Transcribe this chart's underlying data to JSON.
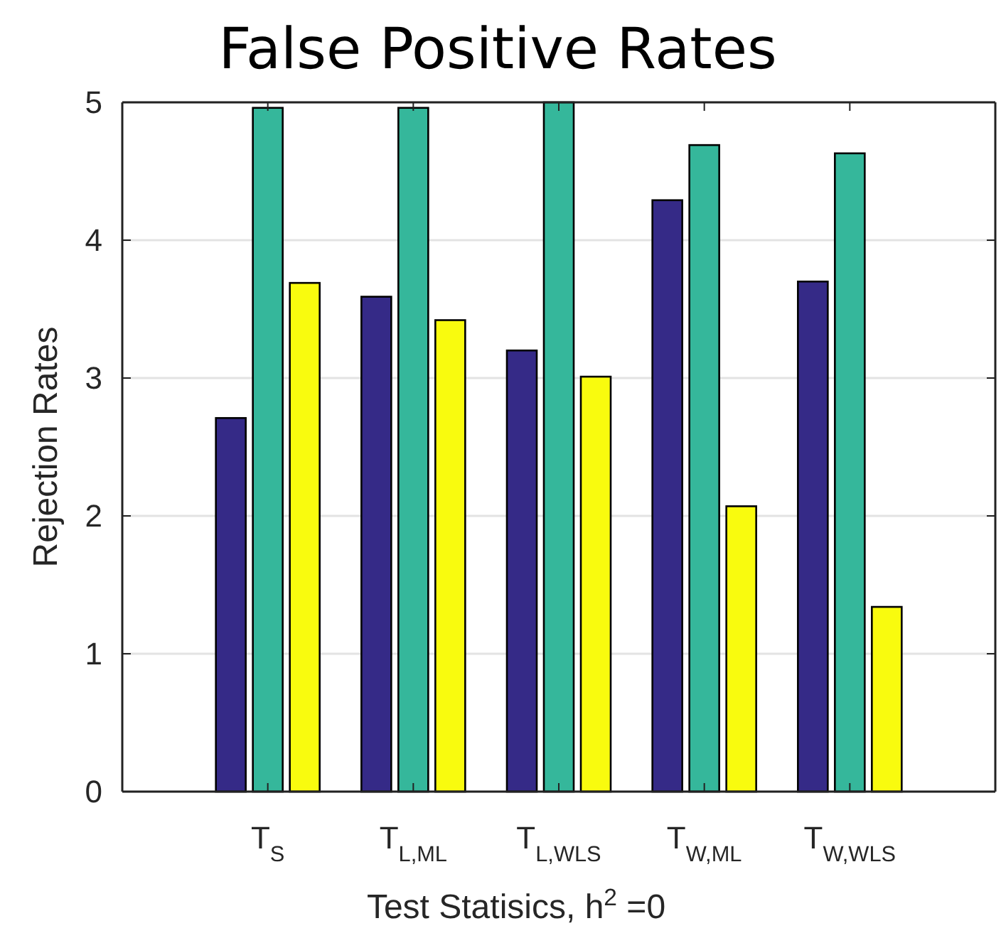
{
  "chart_data": {
    "type": "bar",
    "title": "False Positive Rates",
    "xlabel": "Test Statisics, h$^{2}$ =0",
    "ylabel": "Rejection Rates",
    "categories": [
      "T$_{S}$",
      "T$_{L,ML}$",
      "T$_{L,WLS}$",
      "T$_{W,ML}$",
      "T$_{W,WLS}$"
    ],
    "series": [
      {
        "color": "#352a87",
        "values": [
          2.71,
          3.59,
          3.2,
          4.29,
          3.7
        ]
      },
      {
        "color": "#35b79b",
        "values": [
          4.96,
          4.96,
          5.0,
          4.69,
          4.63
        ]
      },
      {
        "color": "#f9fb0e",
        "values": [
          3.69,
          3.42,
          3.01,
          2.07,
          1.34
        ]
      }
    ],
    "ylim": [
      0,
      5
    ],
    "yticks": [
      0,
      1,
      2,
      3,
      4,
      5
    ],
    "grid": "y"
  }
}
